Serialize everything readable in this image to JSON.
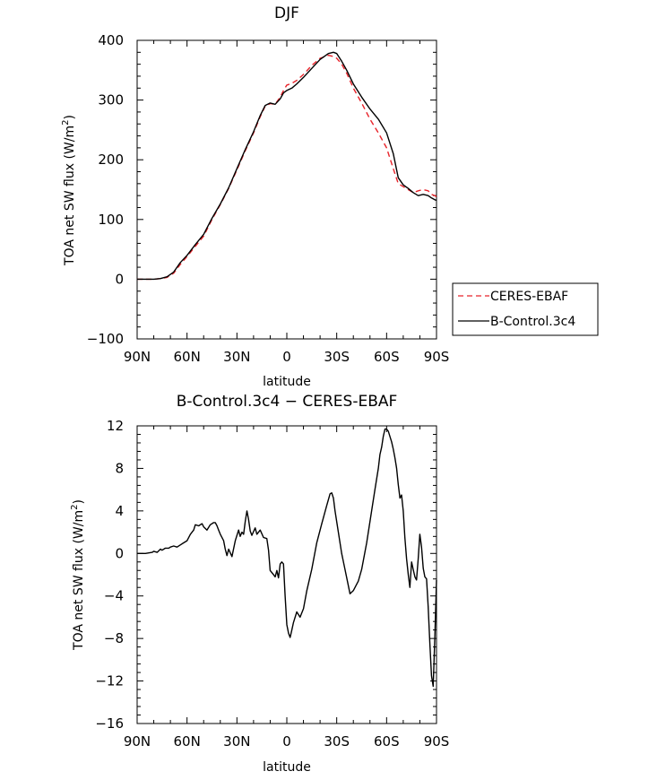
{
  "chart_data": [
    {
      "type": "line",
      "title": "DJF",
      "xlabel": "latitude",
      "ylabel_text": "TOA net SW flux (W/m",
      "ylabel_sup": "2",
      "ylabel_close": ")",
      "xlim": [
        90,
        -90
      ],
      "ylim": [
        -100,
        400
      ],
      "x_ticks": [
        90,
        60,
        30,
        0,
        -30,
        -60,
        -90
      ],
      "x_tick_labels": [
        "90N",
        "60N",
        "30N",
        "0",
        "30S",
        "60S",
        "90S"
      ],
      "y_ticks": [
        -100,
        0,
        100,
        200,
        300,
        400
      ],
      "y_tick_labels": [
        "−100",
        "0",
        "100",
        "200",
        "300",
        "400"
      ],
      "legend_position": "right",
      "series": [
        {
          "name": "CERES-EBAF",
          "color": "#e8232a",
          "dash": "dashed",
          "x": [
            90,
            85,
            80,
            76,
            72,
            68,
            64,
            60,
            55,
            50,
            45,
            40,
            35,
            30,
            25,
            20,
            16,
            13,
            10,
            7,
            4,
            2,
            0,
            -3,
            -6,
            -10,
            -15,
            -20,
            -25,
            -28,
            -30,
            -33,
            -36,
            -40,
            -45,
            -50,
            -55,
            -60,
            -64,
            -67,
            -70,
            -73,
            -76,
            -79,
            -82,
            -85,
            -87,
            -89,
            -90
          ],
          "y": [
            0,
            0,
            0,
            1,
            3,
            10,
            25,
            38,
            55,
            72,
            100,
            125,
            152,
            183,
            215,
            245,
            272,
            290,
            294,
            293,
            305,
            316,
            325,
            328,
            333,
            343,
            358,
            370,
            375,
            373,
            370,
            360,
            345,
            320,
            295,
            268,
            245,
            220,
            185,
            160,
            155,
            150,
            145,
            148,
            150,
            148,
            142,
            140,
            138
          ]
        },
        {
          "name": "B-Control.3c4",
          "color": "#000000",
          "dash": "solid",
          "x": [
            90,
            85,
            80,
            76,
            72,
            68,
            64,
            60,
            55,
            50,
            45,
            40,
            35,
            30,
            25,
            20,
            16,
            13,
            10,
            7,
            4,
            2,
            0,
            -3,
            -6,
            -10,
            -15,
            -20,
            -25,
            -28,
            -30,
            -33,
            -36,
            -40,
            -45,
            -50,
            -55,
            -60,
            -64,
            -67,
            -70,
            -73,
            -76,
            -79,
            -82,
            -85,
            -87,
            -89,
            -90
          ],
          "y": [
            0,
            0,
            0,
            1,
            4,
            12,
            28,
            40,
            58,
            75,
            102,
            126,
            153,
            185,
            217,
            247,
            274,
            291,
            295,
            293,
            302,
            312,
            316,
            320,
            327,
            338,
            353,
            368,
            378,
            380,
            378,
            365,
            350,
            327,
            305,
            285,
            268,
            245,
            210,
            170,
            158,
            152,
            145,
            140,
            142,
            140,
            136,
            133,
            132
          ]
        }
      ]
    },
    {
      "type": "line",
      "title": "B-Control.3c4 − CERES-EBAF",
      "xlabel": "latitude",
      "ylabel_text": "TOA net SW flux (W/m",
      "ylabel_sup": "2",
      "ylabel_close": ")",
      "xlim": [
        90,
        -90
      ],
      "ylim": [
        -16,
        12
      ],
      "x_ticks": [
        90,
        60,
        30,
        0,
        -30,
        -60,
        -90
      ],
      "x_tick_labels": [
        "90N",
        "60N",
        "30N",
        "0",
        "30S",
        "60S",
        "90S"
      ],
      "y_ticks": [
        -16,
        -12,
        -8,
        -4,
        0,
        4,
        8,
        12
      ],
      "y_tick_labels": [
        "−16",
        "−12",
        "−8",
        "−4",
        "0",
        "4",
        "8",
        "12"
      ],
      "series": [
        {
          "name": "",
          "color": "#000000",
          "dash": "solid",
          "x": [
            90,
            85,
            81,
            80,
            78,
            76,
            75,
            73,
            71,
            70,
            68,
            66,
            64,
            62,
            60,
            58,
            56,
            55,
            53,
            51,
            50,
            48,
            46,
            44,
            43,
            42,
            41,
            40,
            38,
            37,
            36,
            35,
            33,
            31,
            29,
            28,
            27,
            26,
            25,
            24,
            23,
            22,
            21,
            19,
            18,
            16,
            14,
            12,
            11,
            10,
            8,
            7,
            6,
            5,
            4,
            3,
            2,
            1,
            0,
            -1,
            -2,
            -3,
            -4,
            -6,
            -8,
            -10,
            -12,
            -15,
            -18,
            -21,
            -24,
            -26,
            -27,
            -28,
            -29,
            -31,
            -33,
            -35,
            -38,
            -40,
            -43,
            -45,
            -48,
            -51,
            -53,
            -55,
            -56,
            -57,
            -58,
            -59,
            -60,
            -61,
            -63,
            -64,
            -65,
            -66,
            -67,
            -68,
            -69,
            -70,
            -71,
            -72,
            -73,
            -74,
            -75,
            -76,
            -77,
            -78,
            -79,
            -80,
            -81,
            -82,
            -83,
            -84,
            -85,
            -86,
            -87,
            -88,
            -89,
            -90
          ],
          "y": [
            0,
            0,
            0.1,
            0.2,
            0.1,
            0.4,
            0.3,
            0.5,
            0.5,
            0.6,
            0.7,
            0.6,
            0.8,
            1.0,
            1.2,
            1.8,
            2.2,
            2.7,
            2.6,
            2.8,
            2.5,
            2.2,
            2.7,
            2.9,
            2.9,
            2.6,
            2.2,
            1.8,
            1.2,
            0.4,
            -0.2,
            0.4,
            -0.3,
            1.2,
            2.2,
            1.6,
            2.0,
            1.8,
            3.0,
            4.0,
            3.2,
            2.1,
            1.7,
            2.4,
            1.8,
            2.2,
            1.5,
            1.4,
            0.3,
            -1.6,
            -2.0,
            -2.2,
            -1.6,
            -2.3,
            -1.0,
            -0.8,
            -1.0,
            -4.0,
            -6.7,
            -7.5,
            -7.9,
            -7.2,
            -6.5,
            -5.5,
            -6.0,
            -5.2,
            -3.5,
            -1.5,
            1.0,
            2.8,
            4.5,
            5.6,
            5.7,
            5.2,
            4.0,
            2.0,
            0.0,
            -1.5,
            -3.8,
            -3.5,
            -2.6,
            -1.5,
            1.0,
            4.0,
            6.0,
            8.0,
            9.3,
            10.0,
            11.0,
            11.7,
            11.7,
            11.5,
            10.5,
            9.8,
            9.0,
            8.0,
            6.5,
            5.2,
            5.5,
            4.0,
            1.5,
            -0.5,
            -2.0,
            -3.2,
            -0.8,
            -1.5,
            -2.2,
            -2.5,
            -0.5,
            1.8,
            0.6,
            -1.4,
            -2.2,
            -2.4,
            -5.0,
            -8.5,
            -11.5,
            -12.5,
            -8.0,
            -2.5
          ]
        }
      ]
    }
  ]
}
